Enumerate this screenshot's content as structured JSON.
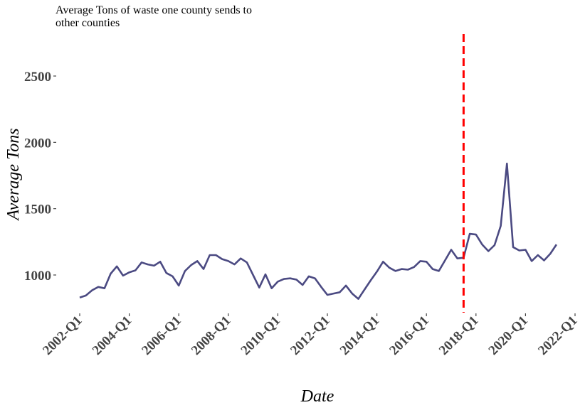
{
  "chart_data": {
    "type": "line",
    "title": "Average Tons of waste one county sends to other counties",
    "xlabel": "Date",
    "ylabel": "Average Tons",
    "x_range": [
      "2002-Q1",
      "2022-Q1"
    ],
    "ylim": [
      780,
      2800
    ],
    "grid": false,
    "legend": "none",
    "x_ticks": [
      "2002-Q1",
      "2004-Q1",
      "2006-Q1",
      "2008-Q1",
      "2010-Q1",
      "2012-Q1",
      "2014-Q1",
      "2016-Q1",
      "2018-Q1",
      "2020-Q1",
      "2022-Q1"
    ],
    "y_ticks": [
      1000,
      1500,
      2000,
      2500
    ],
    "series": [
      {
        "color": "#4b4a82",
        "x": [
          "2002-Q1",
          "2002-Q2",
          "2002-Q3",
          "2002-Q4",
          "2003-Q1",
          "2003-Q2",
          "2003-Q3",
          "2003-Q4",
          "2004-Q1",
          "2004-Q2",
          "2004-Q3",
          "2004-Q4",
          "2005-Q1",
          "2005-Q2",
          "2005-Q3",
          "2005-Q4",
          "2006-Q1",
          "2006-Q2",
          "2006-Q3",
          "2006-Q4",
          "2007-Q1",
          "2007-Q2",
          "2007-Q3",
          "2007-Q4",
          "2008-Q1",
          "2008-Q2",
          "2008-Q3",
          "2008-Q4",
          "2009-Q1",
          "2009-Q2",
          "2009-Q3",
          "2009-Q4",
          "2010-Q1",
          "2010-Q2",
          "2010-Q3",
          "2010-Q4",
          "2011-Q1",
          "2011-Q2",
          "2011-Q3",
          "2011-Q4",
          "2012-Q1",
          "2012-Q2",
          "2012-Q3",
          "2012-Q4",
          "2013-Q1",
          "2013-Q2",
          "2013-Q3",
          "2013-Q4",
          "2014-Q1",
          "2014-Q2",
          "2014-Q3",
          "2014-Q4",
          "2015-Q1",
          "2015-Q2",
          "2015-Q3",
          "2015-Q4",
          "2016-Q1",
          "2016-Q2",
          "2016-Q3",
          "2016-Q4",
          "2017-Q1",
          "2017-Q2",
          "2017-Q3",
          "2017-Q4",
          "2018-Q1",
          "2018-Q2",
          "2018-Q3",
          "2018-Q4",
          "2019-Q1",
          "2019-Q2",
          "2019-Q3",
          "2019-Q4",
          "2020-Q1",
          "2020-Q2",
          "2020-Q3",
          "2020-Q4",
          "2021-Q1",
          "2021-Q2"
        ],
        "y": [
          830,
          845,
          885,
          910,
          900,
          1010,
          1065,
          995,
          1020,
          1035,
          1095,
          1080,
          1070,
          1100,
          1015,
          990,
          920,
          1030,
          1075,
          1105,
          1045,
          1150,
          1150,
          1120,
          1105,
          1080,
          1125,
          1095,
          1000,
          905,
          1005,
          900,
          950,
          970,
          975,
          965,
          925,
          990,
          975,
          910,
          850,
          860,
          870,
          920,
          860,
          820,
          890,
          960,
          1025,
          1100,
          1055,
          1030,
          1045,
          1040,
          1060,
          1105,
          1100,
          1045,
          1030,
          1110,
          1190,
          1125,
          1130,
          1310,
          1305,
          1230,
          1180,
          1225,
          1370,
          1840,
          1210,
          1185,
          1190,
          1105,
          1150,
          1110,
          1160,
          1230
        ]
      }
    ],
    "annotations": [
      {
        "type": "vline",
        "x": "2017-Q3",
        "color": "#ff0000",
        "style": "dashed"
      }
    ]
  }
}
